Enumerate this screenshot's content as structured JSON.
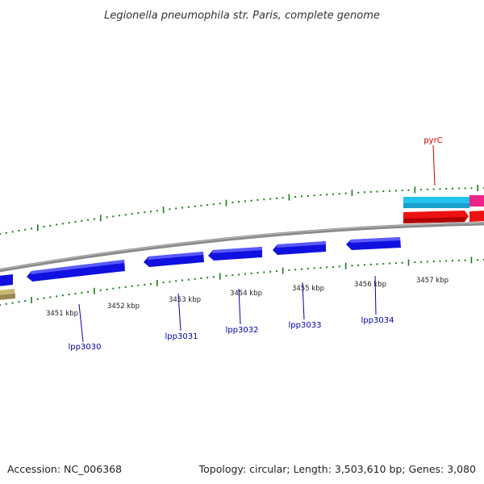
{
  "title": "Legionella pneumophila str. Paris, complete genome",
  "footer": {
    "accession": "Accession: NC_006368",
    "summary": "Topology: circular; Length: 3,503,610 bp; Genes: 3,080"
  },
  "tick_labels": [
    "3451 kbp",
    "3452 kbp",
    "3453 kbp",
    "3454 kbp",
    "3455 kbp",
    "3456 kbp",
    "3457 kbp"
  ],
  "gene_labels": [
    "lpp3030",
    "lpp3031",
    "lpp3032",
    "lpp3033",
    "lpp3034",
    "pyrC"
  ],
  "colors": {
    "reverse_gene": "#1010e0",
    "forward_gene": "#ee1111",
    "rna_track": "#22c4ee",
    "magenta_feature": "#ee2288",
    "olive_feature": "#c8b870",
    "backbone": "#8a8a8a",
    "tick": "#1a7a1a",
    "label_blue": "#0000aa",
    "label_red": "#cc0000"
  }
}
